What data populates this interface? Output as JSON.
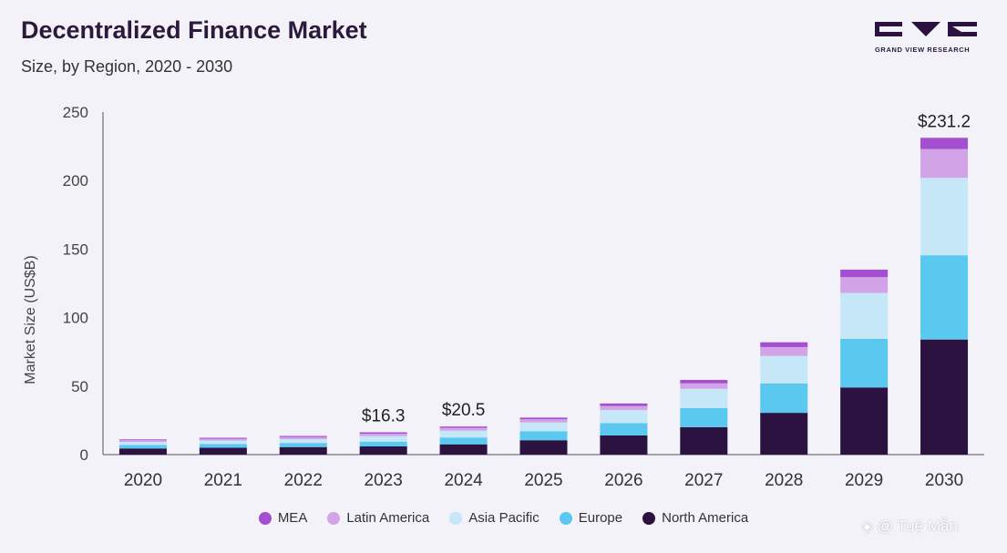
{
  "header": {
    "title": "Decentralized Finance Market",
    "subtitle": "Size, by Region, 2020 - 2030",
    "logo_text": "GRAND VIEW RESEARCH"
  },
  "watermark": "◈ @ Tuệ Mẫn",
  "chart_data": {
    "type": "bar",
    "stacked": true,
    "categories": [
      "2020",
      "2021",
      "2022",
      "2023",
      "2024",
      "2025",
      "2026",
      "2027",
      "2028",
      "2029",
      "2030"
    ],
    "series": [
      {
        "name": "North America",
        "color": "#2b1240",
        "values": [
          4.5,
          5.0,
          5.5,
          6.0,
          7.5,
          10.5,
          14.0,
          20.0,
          30.5,
          49.0,
          84.0
        ]
      },
      {
        "name": "Europe",
        "color": "#5bc8f0",
        "values": [
          2.5,
          2.8,
          3.0,
          3.5,
          5.0,
          6.5,
          9.0,
          14.0,
          21.5,
          35.5,
          61.5
        ]
      },
      {
        "name": "Asia Pacific",
        "color": "#c5e7f7",
        "values": [
          2.3,
          2.5,
          2.8,
          4.0,
          5.0,
          6.5,
          9.5,
          14.0,
          20.0,
          33.5,
          56.5
        ]
      },
      {
        "name": "Latin America",
        "color": "#d2a3e6",
        "values": [
          1.2,
          1.3,
          1.5,
          1.8,
          2.0,
          2.3,
          3.0,
          4.0,
          6.5,
          11.5,
          21.0
        ]
      },
      {
        "name": "MEA",
        "color": "#a34fcf",
        "values": [
          0.6,
          0.7,
          0.8,
          1.0,
          1.0,
          1.2,
          1.8,
          2.5,
          3.5,
          5.5,
          8.2
        ]
      }
    ],
    "legend_order": [
      "MEA",
      "Latin America",
      "Asia Pacific",
      "Europe",
      "North America"
    ],
    "total_labels": [
      {
        "category": "2023",
        "label": "$16.3",
        "value": 16.3
      },
      {
        "category": "2024",
        "label": "$20.5",
        "value": 20.5
      },
      {
        "category": "2030",
        "label": "$231.2",
        "value": 231.2
      }
    ],
    "ylabel": "Market Size (US$B)",
    "xlabel": "",
    "ylim": [
      0,
      250
    ],
    "yticks": [
      0,
      50,
      100,
      150,
      200,
      250
    ],
    "grid": false,
    "legend_position": "bottom"
  }
}
